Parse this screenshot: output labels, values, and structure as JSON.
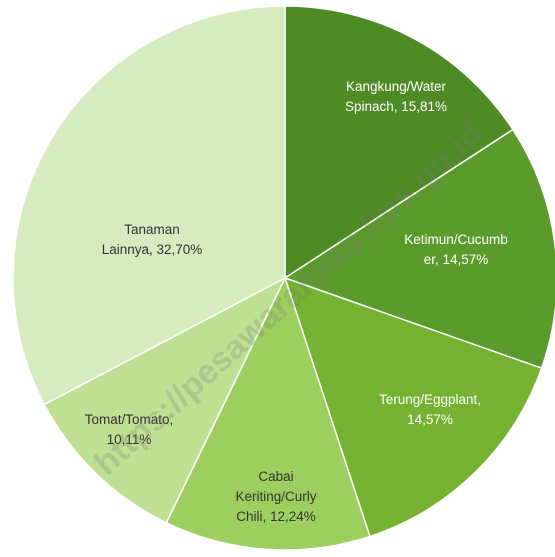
{
  "chart_data": {
    "type": "pie",
    "labels": [
      "Kangkung/Water Spinach, 15,81%",
      "Ketimun/Cucumber, 14,57%",
      "Terung/Eggplant, 14,57%",
      "Cabai Keriting/Curly Chili, 12,24%",
      "Tomat/Tomato, 10,11%",
      "Tanaman Lainnya, 32,70%"
    ],
    "values": [
      15.81,
      14.57,
      14.57,
      12.24,
      10.11,
      32.7
    ],
    "colors": [
      "#4f8b25",
      "#5b9b2b",
      "#75b232",
      "#9dcf5f",
      "#bfe092",
      "#d6ebbf"
    ],
    "watermark": "https://pesawarankab.bps.go.id"
  }
}
